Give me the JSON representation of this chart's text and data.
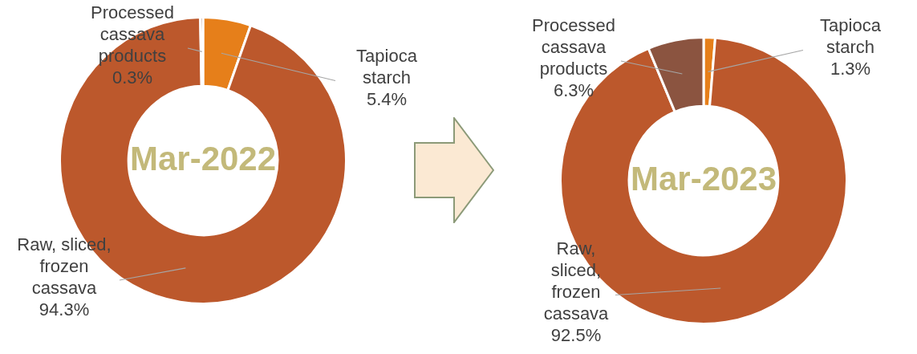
{
  "chart_data": [
    {
      "type": "donut",
      "title": "Mar-2022",
      "categories": [
        "Tapioca starch",
        "Raw, sliced, frozen cassava",
        "Processed cassava products"
      ],
      "values": [
        5.4,
        94.3,
        0.3
      ],
      "colors": [
        "#e67f1a",
        "#bc582c",
        "#8b5440"
      ],
      "value_labels": [
        "5.4%",
        "94.3%",
        "0.3%"
      ]
    },
    {
      "type": "donut",
      "title": "Mar-2023",
      "categories": [
        "Tapioca starch",
        "Raw, sliced, frozen cassava",
        "Processed cassava products"
      ],
      "values": [
        1.3,
        92.5,
        6.3
      ],
      "colors": [
        "#e67f1a",
        "#bc582c",
        "#8b5440"
      ],
      "value_labels": [
        "1.3%",
        "92.5%",
        "6.3%"
      ]
    }
  ]
}
